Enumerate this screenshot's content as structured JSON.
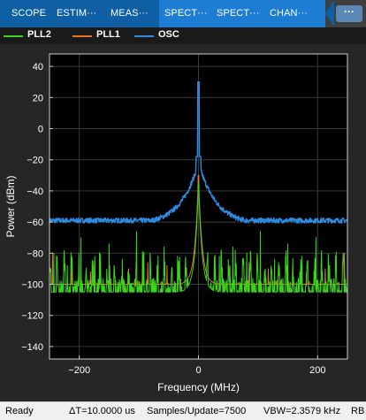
{
  "toolstrip": {
    "tabs": [
      {
        "label": "SCOPE",
        "active": false
      },
      {
        "label": "ESTIM···",
        "active": false
      },
      {
        "label": "MEAS···",
        "active": false
      },
      {
        "label": "SPECT···",
        "active": true
      },
      {
        "label": "SPECT···",
        "active": true
      },
      {
        "label": "CHAN···",
        "active": true
      }
    ],
    "overflow_label": "···",
    "colors": {
      "bar": "#0e5fa4",
      "active_tab": "#1c7dd2"
    }
  },
  "statusbar": {
    "status": "Ready",
    "delta_t": "ΔT=10.0000 us",
    "samples": "Samples/Update=7500",
    "vbw": "VBW=2.3579 kHz",
    "rbw": "RB"
  },
  "chart_data": {
    "type": "line",
    "title": "",
    "xlabel": "Frequency (MHz)",
    "ylabel": "Power (dBm)",
    "xlim": [
      -250,
      250
    ],
    "ylim": [
      -148,
      48
    ],
    "xticks": [
      -200,
      0,
      200
    ],
    "yticks": [
      -140,
      -120,
      -100,
      -80,
      -60,
      -40,
      -20,
      0,
      20,
      40
    ],
    "grid": true,
    "legend_position": "top",
    "background": "#000000",
    "series": [
      {
        "name": "PLL2",
        "color": "#3bd31b",
        "floor": -108,
        "noise": 4,
        "peak": -35,
        "spur_spacing": 12,
        "spur_level": -75,
        "spurs": [
          {
            "x": -243,
            "y": -80
          },
          {
            "x": -220,
            "y": -88
          },
          {
            "x": -197,
            "y": -70
          },
          {
            "x": -174,
            "y": -82
          },
          {
            "x": -150,
            "y": -74
          },
          {
            "x": -128,
            "y": -84
          },
          {
            "x": -104,
            "y": -66
          },
          {
            "x": -81,
            "y": -80
          },
          {
            "x": -58,
            "y": -76
          },
          {
            "x": -35,
            "y": -82
          },
          {
            "x": 35,
            "y": -82
          },
          {
            "x": 58,
            "y": -76
          },
          {
            "x": 81,
            "y": -80
          },
          {
            "x": 104,
            "y": -66
          },
          {
            "x": 128,
            "y": -84
          },
          {
            "x": 150,
            "y": -74
          },
          {
            "x": 174,
            "y": -82
          },
          {
            "x": 197,
            "y": -70
          },
          {
            "x": 220,
            "y": -88
          },
          {
            "x": 243,
            "y": -80
          }
        ]
      },
      {
        "name": "PLL1",
        "color": "#e8731d",
        "floor": -120,
        "noise": 3,
        "peak": -30,
        "spur_spacing": 8,
        "spur_level": -95,
        "spurs": [
          {
            "x": -245,
            "y": -80
          },
          {
            "x": -213,
            "y": -90
          },
          {
            "x": -181,
            "y": -92
          },
          {
            "x": -149,
            "y": -88
          },
          {
            "x": -117,
            "y": -90
          },
          {
            "x": -85,
            "y": -86
          },
          {
            "x": -53,
            "y": -88
          },
          {
            "x": 53,
            "y": -88
          },
          {
            "x": 85,
            "y": -86
          },
          {
            "x": 117,
            "y": -90
          },
          {
            "x": 149,
            "y": -88
          },
          {
            "x": 181,
            "y": -92
          },
          {
            "x": 213,
            "y": -90
          },
          {
            "x": 245,
            "y": -80
          }
        ]
      },
      {
        "name": "OSC",
        "color": "#2d8de2",
        "floor": -59,
        "noise": 1.6,
        "peak": 30,
        "shoulder": -22,
        "spurs": []
      }
    ]
  }
}
